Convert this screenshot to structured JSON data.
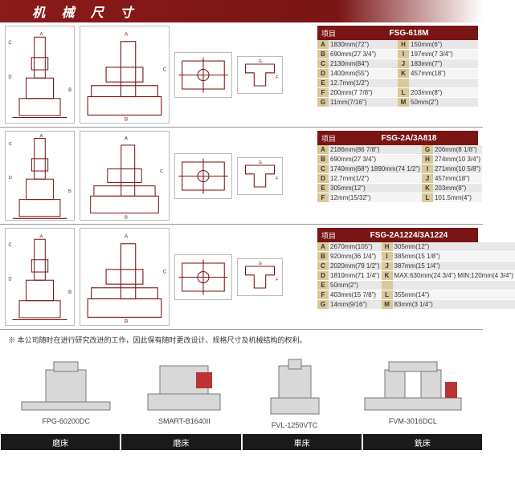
{
  "banner_title": "机 械 尺 寸",
  "colors": {
    "brand_dark_red": "#7a1515",
    "band_tan": "#d9c89a",
    "row_gray": "#e8e8e8",
    "row_gray_alt": "#f5f5f5",
    "footer_black": "#1a1a1a"
  },
  "sections": [
    {
      "header_label": "项目",
      "model": "FSG-618M",
      "specs": [
        {
          "k": "A",
          "v": "1830mm(72\")"
        },
        {
          "k": "H",
          "v": "150mm(6\")"
        },
        {
          "k": "B",
          "v": "690mm(27 3/4\")"
        },
        {
          "k": "I",
          "v": "197mm(7 3/4\")"
        },
        {
          "k": "C",
          "v": "2130mm(84\")"
        },
        {
          "k": "J",
          "v": "183mm(7\")"
        },
        {
          "k": "D",
          "v": "1400mm(55\")"
        },
        {
          "k": "K",
          "v": "457mm(18\")"
        },
        {
          "k": "E",
          "v": "12.7mm(1/2\")"
        },
        {
          "k": "",
          "v": ""
        },
        {
          "k": "F",
          "v": "200mm(7 7/8\")"
        },
        {
          "k": "L",
          "v": "203mm(8\")"
        },
        {
          "k": "G",
          "v": "11mm(7/16\")"
        },
        {
          "k": "M",
          "v": "50mm(2\")"
        }
      ]
    },
    {
      "header_label": "项目",
      "model": "FSG-2A/3A818",
      "specs": [
        {
          "k": "A",
          "v": "2186mm(86 7/8\")"
        },
        {
          "k": "G",
          "v": "206mm(8 1/8\")"
        },
        {
          "k": "B",
          "v": "690mm(27 3/4\")"
        },
        {
          "k": "H",
          "v": "274mm(10 3/4\")"
        },
        {
          "k": "C",
          "v": "1740mm(68\") 1890mm(74 1/2\")"
        },
        {
          "k": "I",
          "v": "271mm(10 5/8\")"
        },
        {
          "k": "D",
          "v": "12.7mm(1/2\")"
        },
        {
          "k": "J",
          "v": "457mm(18\")"
        },
        {
          "k": "E",
          "v": "305mm(12\")"
        },
        {
          "k": "K",
          "v": "203mm(8\")"
        },
        {
          "k": "F",
          "v": "12mm(15/32\")"
        },
        {
          "k": "L",
          "v": "101.5mm(4\")"
        }
      ]
    },
    {
      "header_label": "项目",
      "model": "FSG-2A1224/3A1224",
      "specs": [
        {
          "k": "A",
          "v": "2670mm(105\")"
        },
        {
          "k": "H",
          "v": "305mm(12\")"
        },
        {
          "k": "B",
          "v": "920mm(36 1/4\")"
        },
        {
          "k": "I",
          "v": "385mm(15 1/8\")"
        },
        {
          "k": "C",
          "v": "2020mm(79 1/2\")"
        },
        {
          "k": "J",
          "v": "387mm(15 1/4\")"
        },
        {
          "k": "D",
          "v": "1810mm(71 1/4\")"
        },
        {
          "k": "K",
          "v": "MAX:630mm(24 3/4\") MIN:120mm(4 3/4\")"
        },
        {
          "k": "E",
          "v": "50mm(2\")"
        },
        {
          "k": "",
          "v": ""
        },
        {
          "k": "F",
          "v": "403mm(15 7/8\")"
        },
        {
          "k": "L",
          "v": "355mm(14\")"
        },
        {
          "k": "G",
          "v": "14mm(9/16\")"
        },
        {
          "k": "M",
          "v": "83mm(3 1/4\")"
        }
      ]
    }
  ],
  "footnote": "※ 本公司随时在进行研究改进的工作，因此保有随时更改设计、规格尺寸及机械结构的权利。",
  "machines": [
    {
      "label": "FPG-60200DC"
    },
    {
      "label": "SMART-B1640II"
    },
    {
      "label": "FVL-1250VTC"
    },
    {
      "label": "FVM-3016DCL"
    }
  ],
  "footer_categories": [
    "磨床",
    "磨床",
    "車床",
    "銑床"
  ]
}
